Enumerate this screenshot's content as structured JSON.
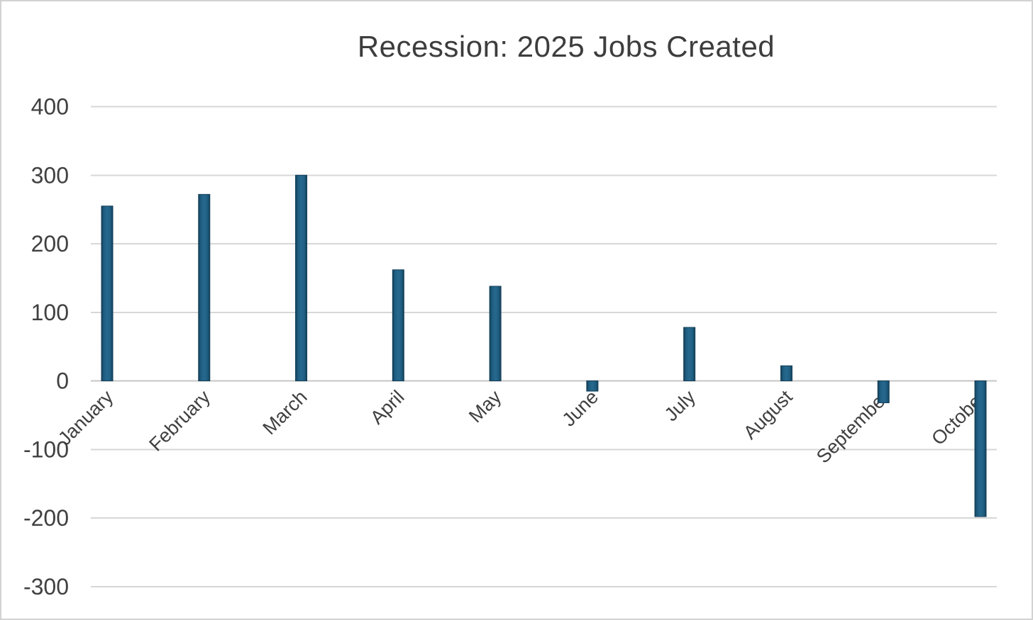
{
  "chart_data": {
    "type": "bar",
    "title": "Recession: 2025 Jobs Created",
    "xlabel": "",
    "ylabel": "",
    "categories": [
      "January",
      "February",
      "March",
      "April",
      "May",
      "June",
      "July",
      "August",
      "September",
      "October"
    ],
    "values": [
      255,
      272,
      300,
      162,
      138,
      -15,
      78,
      22,
      -32,
      -198
    ],
    "y_ticks": [
      400,
      300,
      200,
      100,
      0,
      -100,
      -200,
      -300
    ],
    "ylim": [
      -300,
      400
    ],
    "grid": true,
    "legend": false,
    "colors": {
      "bar_fill": "#1f5e82",
      "bar_fill_light": "#27698e",
      "bar_edge": "#143f58",
      "gridline": "#d7d7d7",
      "zero_line": "#c6c6c6",
      "tick_text": "#404040",
      "title_text": "#3d3d3d",
      "frame_border": "#d2d2d2",
      "background": "#ffffff"
    }
  }
}
